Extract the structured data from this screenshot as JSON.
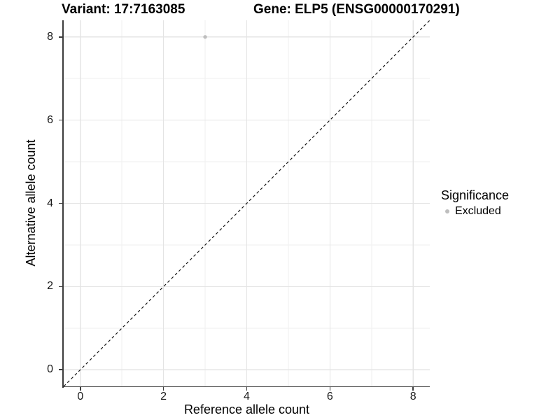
{
  "header": {
    "title_left": "Variant: 17:7163085",
    "title_right": "Gene: ELP5 (ENSG00000170291)"
  },
  "chart_data": {
    "type": "scatter",
    "title": "Variant: 17:7163085   Gene: ELP5 (ENSG00000170291)",
    "xlabel": "Reference allele count",
    "ylabel": "Alternative allele count",
    "xlim": [
      -0.4,
      8.4
    ],
    "ylim": [
      -0.4,
      8.4
    ],
    "x_ticks": [
      0,
      2,
      4,
      6,
      8
    ],
    "y_ticks": [
      0,
      2,
      4,
      6,
      8
    ],
    "x_minor_gridlines": [
      1,
      3,
      5,
      7
    ],
    "y_minor_gridlines": [
      1,
      3,
      5,
      7
    ],
    "grid": true,
    "identity_line": {
      "style": "dashed",
      "color": "#111111",
      "from": [
        -0.4,
        -0.4
      ],
      "to": [
        8.4,
        8.4
      ]
    },
    "series": [
      {
        "name": "Excluded",
        "color": "#bebebe",
        "points": [
          {
            "x": 3,
            "y": 8
          }
        ]
      }
    ],
    "legend": {
      "title": "Significance",
      "position": "right",
      "items": [
        {
          "label": "Excluded",
          "color": "#bebebe"
        }
      ]
    }
  },
  "colors": {
    "background": "#ffffff",
    "grid_major": "#e4e4e4",
    "grid_minor": "#efefef",
    "axis_line": "#3c3c3c",
    "tick_text": "#1a1a1a",
    "excluded_point": "#bebebe"
  }
}
